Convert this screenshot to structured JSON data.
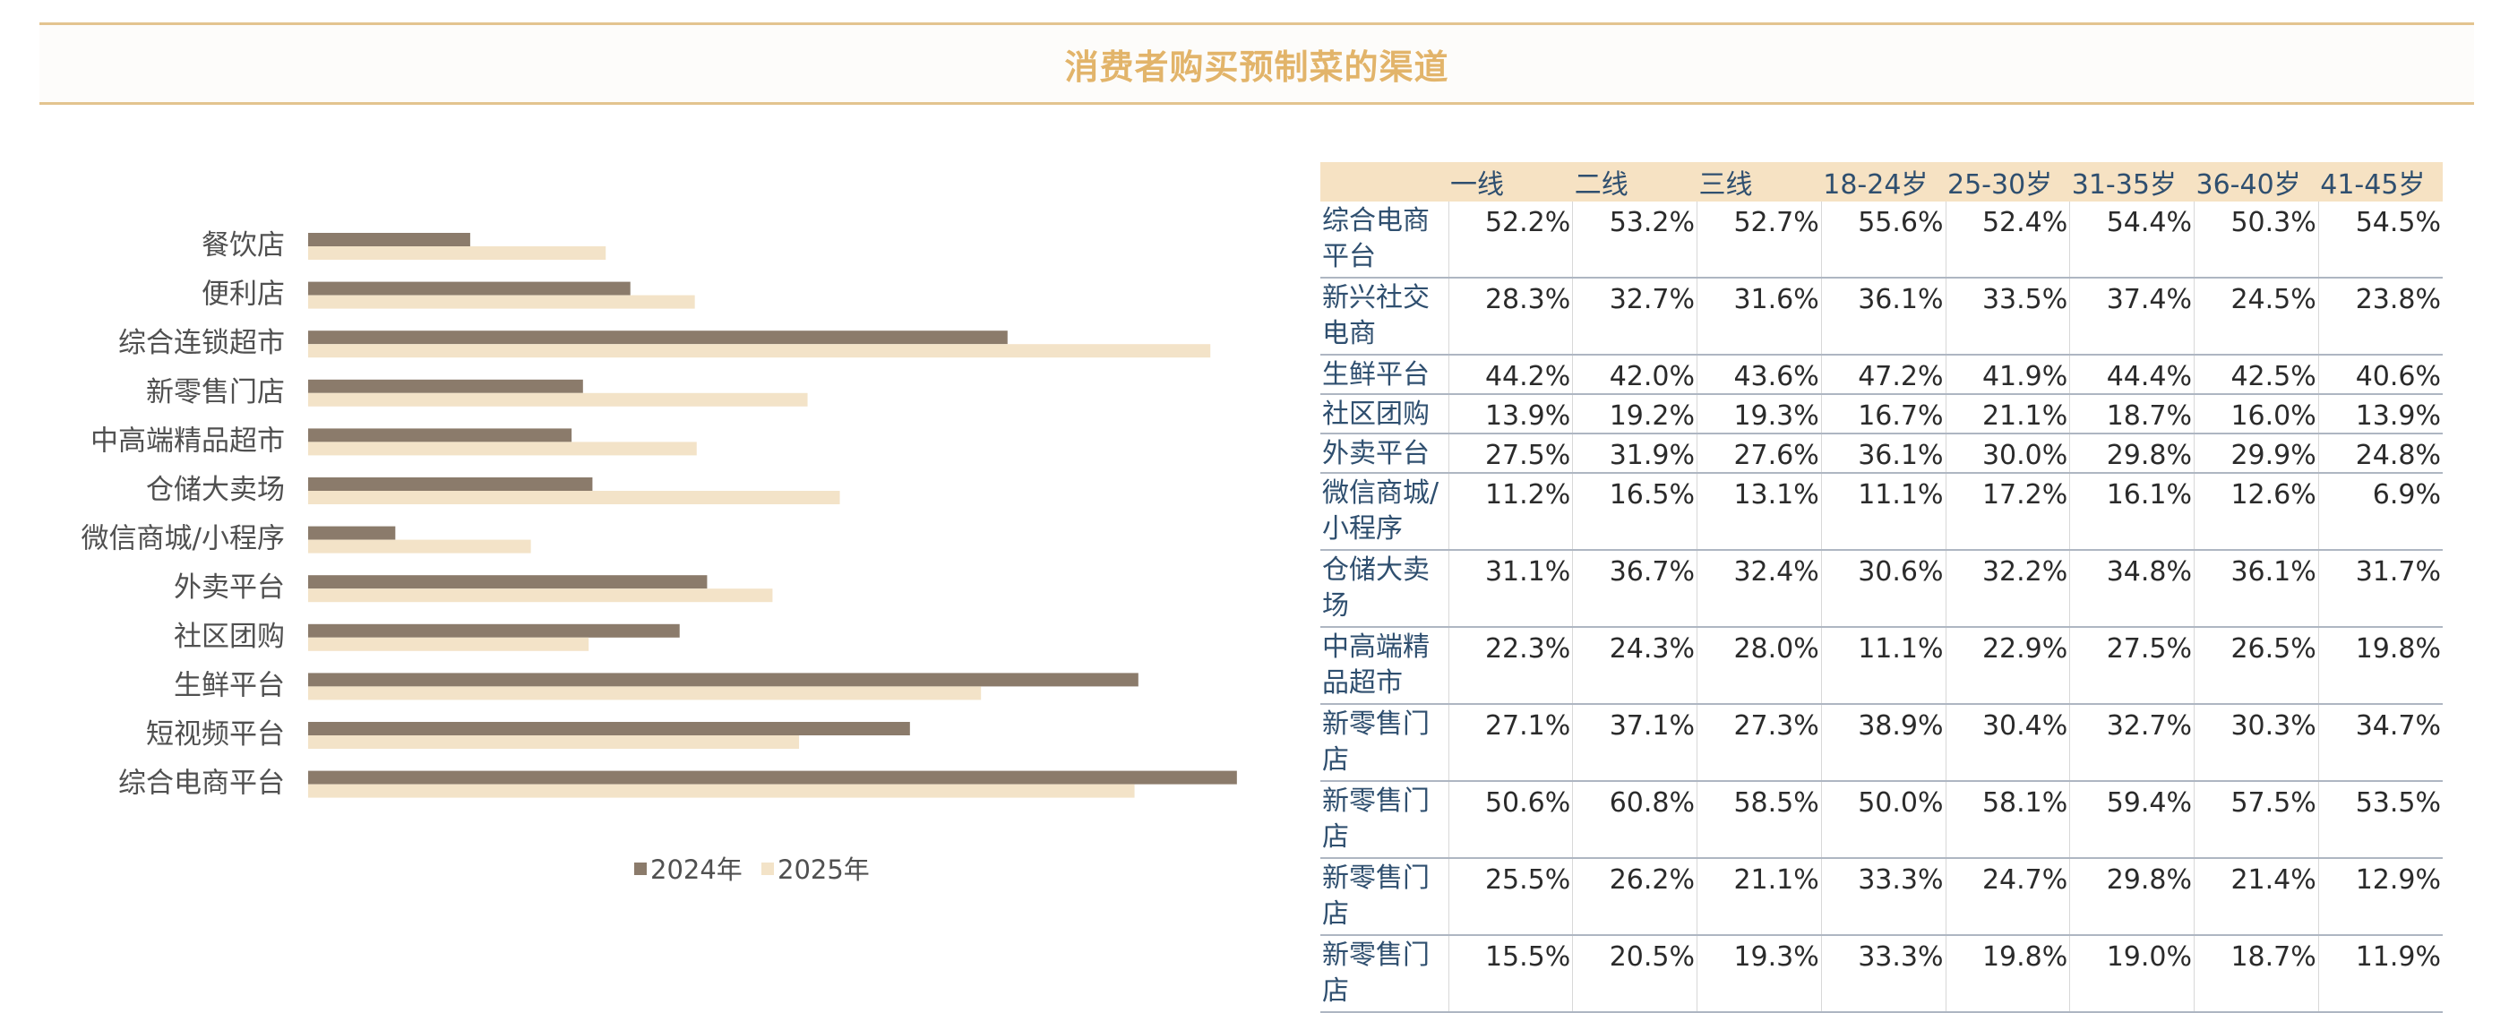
{
  "title": "消费者购买预制菜的渠道",
  "colors": {
    "series_2024": "#8b7b6b",
    "series_2025": "#f3e3c8",
    "accent": "#e2b46a",
    "header_bg": "#f6e2c3"
  },
  "chart_data": {
    "type": "bar",
    "orientation": "horizontal",
    "categories": [
      "餐饮店",
      "便利店",
      "综合连锁超市",
      "新零售门店",
      "中高端精品超市",
      "仓储大卖场",
      "微信商城/小程序",
      "外卖平台",
      "社区团购",
      "生鲜平台",
      "短视频平台",
      "综合电商平台"
    ],
    "series": [
      {
        "name": "2024年",
        "values": [
          0.171,
          0.34,
          0.738,
          0.29,
          0.278,
          0.3,
          0.092,
          0.421,
          0.392,
          0.876,
          0.635,
          0.98
        ]
      },
      {
        "name": "2025年",
        "values": [
          0.314,
          0.408,
          0.952,
          0.527,
          0.41,
          0.561,
          0.235,
          0.49,
          0.296,
          0.71,
          0.518,
          0.872
        ]
      }
    ],
    "xlim": [
      0,
      1
    ],
    "grid": false,
    "legend": "bottom"
  },
  "table": {
    "headers": [
      "",
      "一线",
      "二线",
      "三线",
      "18-24岁",
      "25-30岁",
      "31-35岁",
      "36-40岁",
      "41-45岁"
    ],
    "rows": [
      {
        "label": "综合电商平台",
        "values": [
          "52.2%",
          "53.2%",
          "52.7%",
          "55.6%",
          "52.4%",
          "54.4%",
          "50.3%",
          "54.5%"
        ]
      },
      {
        "label": "新兴社交电商",
        "values": [
          "28.3%",
          "32.7%",
          "31.6%",
          "36.1%",
          "33.5%",
          "37.4%",
          "24.5%",
          "23.8%"
        ]
      },
      {
        "label": "生鲜平台",
        "values": [
          "44.2%",
          "42.0%",
          "43.6%",
          "47.2%",
          "41.9%",
          "44.4%",
          "42.5%",
          "40.6%"
        ]
      },
      {
        "label": "社区团购",
        "values": [
          "13.9%",
          "19.2%",
          "19.3%",
          "16.7%",
          "21.1%",
          "18.7%",
          "16.0%",
          "13.9%"
        ]
      },
      {
        "label": "外卖平台",
        "values": [
          "27.5%",
          "31.9%",
          "27.6%",
          "36.1%",
          "30.0%",
          "29.8%",
          "29.9%",
          "24.8%"
        ]
      },
      {
        "label": "微信商城/小程序",
        "values": [
          "11.2%",
          "16.5%",
          "13.1%",
          "11.1%",
          "17.2%",
          "16.1%",
          "12.6%",
          "6.9%"
        ]
      },
      {
        "label": "仓储大卖场",
        "values": [
          "31.1%",
          "36.7%",
          "32.4%",
          "30.6%",
          "32.2%",
          "34.8%",
          "36.1%",
          "31.7%"
        ]
      },
      {
        "label": "中高端精品超市",
        "values": [
          "22.3%",
          "24.3%",
          "28.0%",
          "11.1%",
          "22.9%",
          "27.5%",
          "26.5%",
          "19.8%"
        ]
      },
      {
        "label": "新零售门店",
        "values": [
          "27.1%",
          "37.1%",
          "27.3%",
          "38.9%",
          "30.4%",
          "32.7%",
          "30.3%",
          "34.7%"
        ]
      },
      {
        "label": "新零售门店",
        "values": [
          "50.6%",
          "60.8%",
          "58.5%",
          "50.0%",
          "58.1%",
          "59.4%",
          "57.5%",
          "53.5%"
        ]
      },
      {
        "label": "新零售门店",
        "values": [
          "25.5%",
          "26.2%",
          "21.1%",
          "33.3%",
          "24.7%",
          "29.8%",
          "21.4%",
          "12.9%"
        ]
      },
      {
        "label": "新零售门店",
        "values": [
          "15.5%",
          "20.5%",
          "19.3%",
          "33.3%",
          "19.8%",
          "19.0%",
          "18.7%",
          "11.9%"
        ]
      }
    ]
  }
}
